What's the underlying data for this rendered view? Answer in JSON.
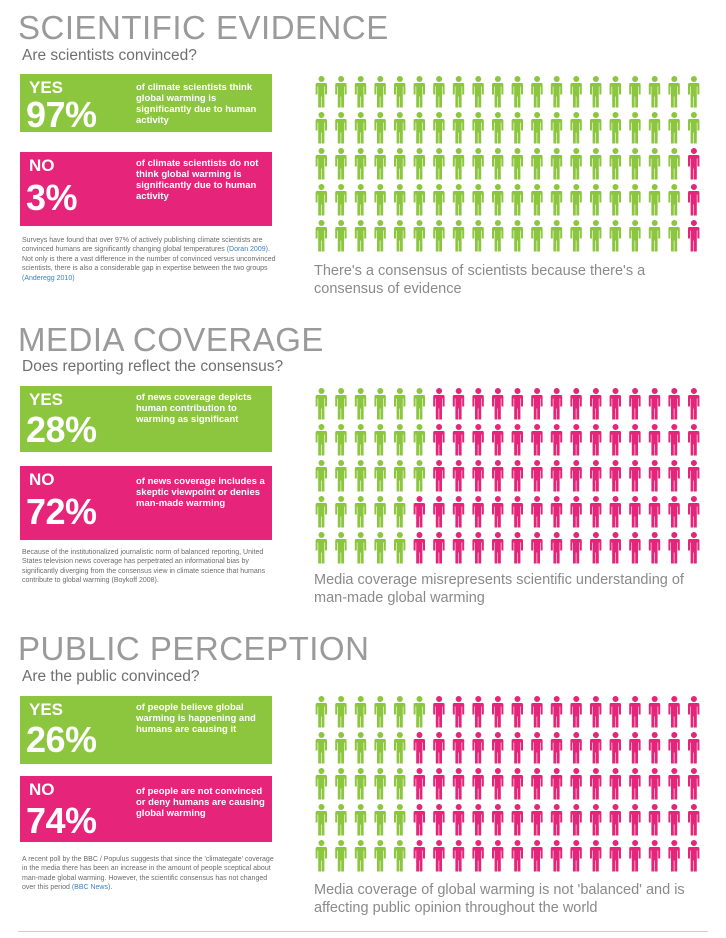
{
  "colors": {
    "green": "#8cc63f",
    "pink": "#e5247a",
    "title_gray": "#9a9a9a"
  },
  "icon": "person-icon",
  "grid": {
    "rows": 5,
    "cols": 20
  },
  "sections": [
    {
      "title": "SCIENTIFIC EVIDENCE",
      "subtitle": "Are scientists convinced?",
      "yes": {
        "label": "YES",
        "percent": "97%",
        "text": "of climate scientists think global warming is significantly due to human activity"
      },
      "no": {
        "label": "NO",
        "percent": "3%",
        "text": "of climate scientists do not think global warming is significantly due to human activity"
      },
      "note": "Surveys have found that over 97% of actively publishing climate scientists are convinced humans are significantly changing global temperatures",
      "note_ref": "(Doran 2009)",
      "note_tail": ". Not only is there a vast difference in the number of convinced versus unconvinced scientists, there is also a considerable gap in expertise between the two groups",
      "note_ref2": "(Anderegg 2010)",
      "caption": "There's a consensus of scientists because there's a consensus of evidence",
      "green_count": 97
    },
    {
      "title": "MEDIA COVERAGE",
      "subtitle": "Does reporting reflect the consensus?",
      "yes": {
        "label": "YES",
        "percent": "28%",
        "text": "of news coverage depicts human contribution to warming as significant"
      },
      "no": {
        "label": "NO",
        "percent": "72%",
        "text": "of news coverage includes a skeptic viewpoint or denies man-made warming"
      },
      "note": "Because of the institutionalized journalistic norm of balanced reporting, United States television news coverage has perpetrated an informational bias by significantly diverging from the consensus view in climate science that humans contribute to global warming (Boykoff 2008).",
      "note_ref": "",
      "note_tail": "",
      "note_ref2": "",
      "caption": "Media coverage misrepresents scientific understanding of man-made global warming",
      "green_count": 28
    },
    {
      "title": "PUBLIC PERCEPTION",
      "subtitle": "Are the public convinced?",
      "yes": {
        "label": "YES",
        "percent": "26%",
        "text": "of people believe global warming is happening and humans are causing it"
      },
      "no": {
        "label": "NO",
        "percent": "74%",
        "text": "of people are not convinced or deny humans are causing global warming"
      },
      "note": "A recent poll by the BBC / Populus suggests that since the 'climategate' coverage in the media there has been an increase in the amount of people sceptical about man-made global warming. However, the scientific consensus has not changed over this period",
      "note_ref": "(BBC News)",
      "note_tail": ".",
      "note_ref2": "",
      "caption": "Media coverage of global warming is not 'balanced' and is affecting public opinion throughout the world",
      "green_count": 26
    }
  ]
}
